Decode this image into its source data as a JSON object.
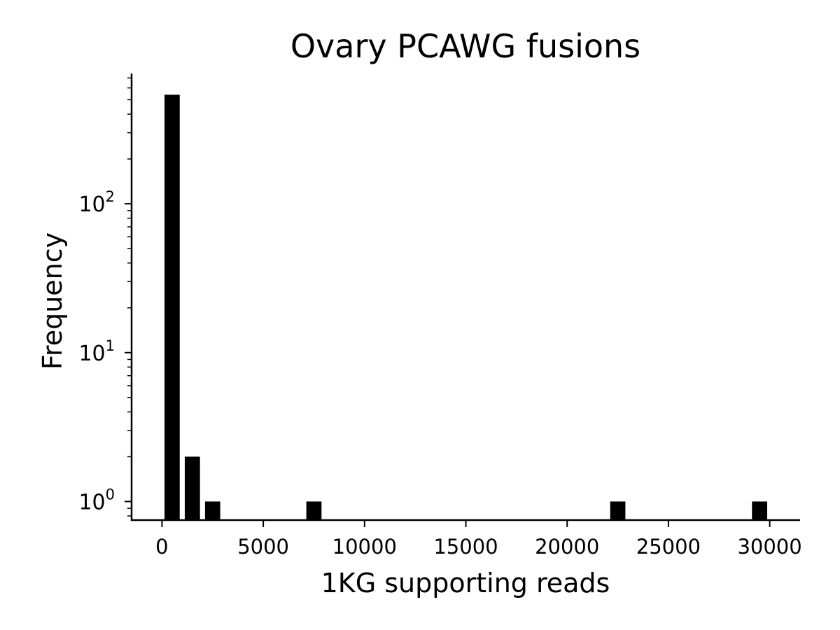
{
  "chart_data": {
    "type": "bar",
    "title": "Ovary PCAWG fusions",
    "xlabel": "1KG supporting reads",
    "ylabel": "Frequency",
    "xlim": [
      -1500,
      31500
    ],
    "ylim": [
      0.75,
      750
    ],
    "yscale": "log",
    "bar_width": 750,
    "x_ticks": [
      0,
      5000,
      10000,
      15000,
      20000,
      25000,
      30000
    ],
    "y_ticks": [
      {
        "value": 1,
        "base": "10",
        "exp": "0"
      },
      {
        "value": 10,
        "base": "10",
        "exp": "1"
      },
      {
        "value": 100,
        "base": "10",
        "exp": "2"
      }
    ],
    "bars": [
      {
        "x": 500,
        "value": 540
      },
      {
        "x": 1500,
        "value": 2
      },
      {
        "x": 2500,
        "value": 1
      },
      {
        "x": 7500,
        "value": 1
      },
      {
        "x": 22500,
        "value": 1
      },
      {
        "x": 29500,
        "value": 1
      }
    ],
    "bar_color": "#000000",
    "grid": false,
    "legend": "none"
  }
}
